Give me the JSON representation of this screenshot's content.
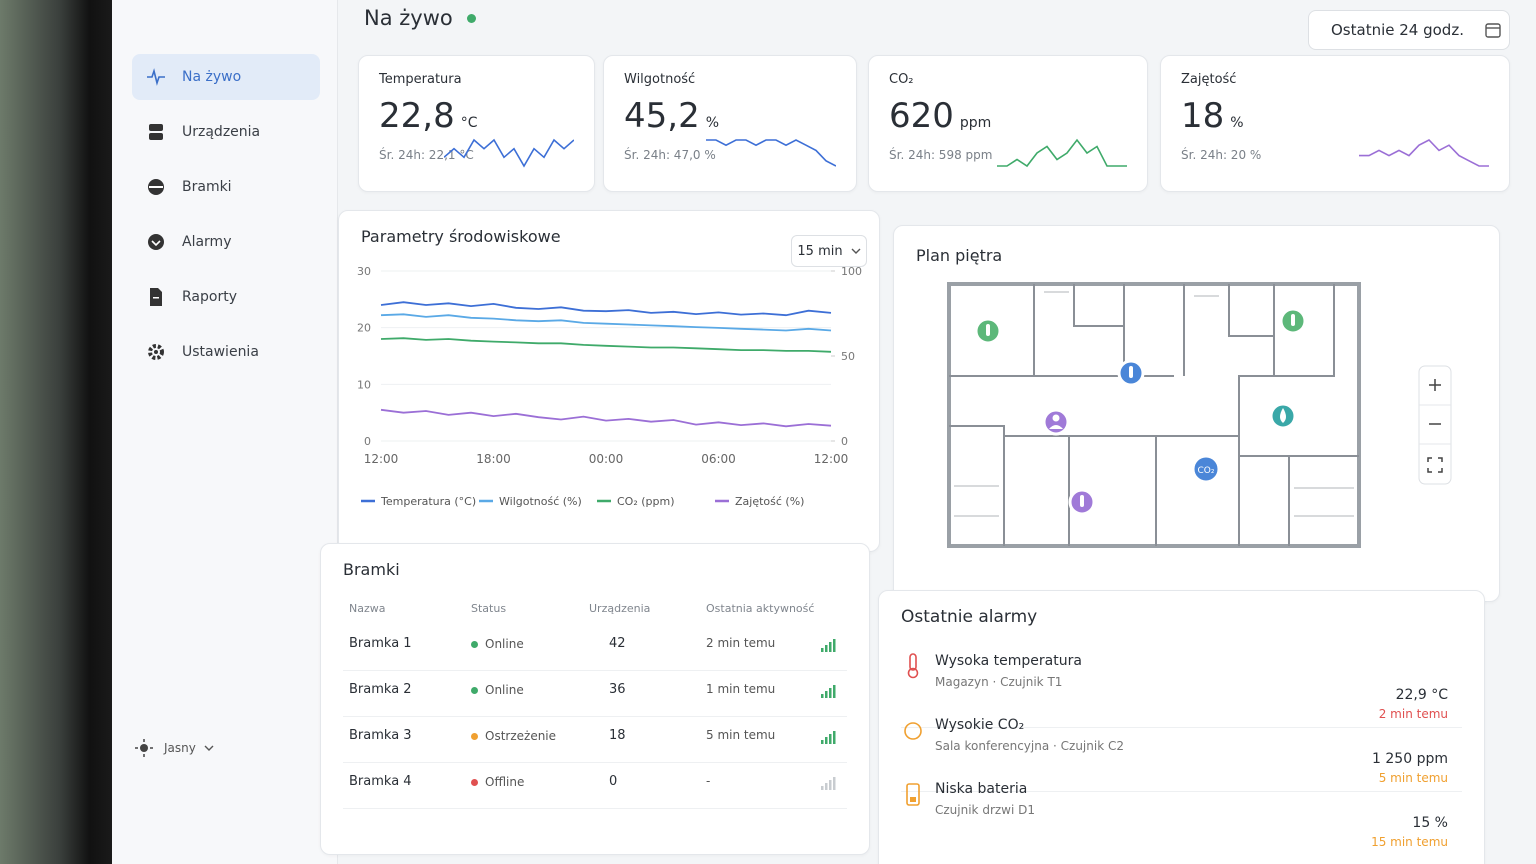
{
  "sidebar": {
    "nav": [
      "Na żywo",
      "Urządzenia",
      "Bramki",
      "Alarmy",
      "Raporty",
      "Ustawienia"
    ],
    "theme": "Jasny"
  },
  "header": {
    "title": "Na żywo",
    "range": "Ostatnie 24 godz."
  },
  "kpis": [
    {
      "label": "Temperatura",
      "value": "22,8",
      "unit": "°C",
      "avg": "Śr. 24h: 22,1 °C",
      "color": "#3d6fd6",
      "spark": [
        3,
        4,
        3,
        5,
        4,
        5,
        3,
        4,
        2,
        4,
        3,
        5,
        4,
        5
      ]
    },
    {
      "label": "Wilgotność",
      "value": "45,2",
      "unit": "%",
      "avg": "Śr. 24h: 47,0 %",
      "color": "#3d6fd6",
      "spark": [
        6,
        6,
        5,
        6,
        6,
        5,
        6,
        6,
        5,
        6,
        5,
        4,
        2,
        1
      ]
    },
    {
      "label": "CO₂",
      "value": "620",
      "unit": "ppm",
      "avg": "Śr. 24h: 598 ppm",
      "color": "#3faa6a",
      "spark": [
        2,
        2,
        3,
        2,
        4,
        5,
        3,
        4,
        6,
        4,
        5,
        2,
        2,
        2
      ]
    },
    {
      "label": "Zajętość",
      "value": "18",
      "unit": "%",
      "avg": "Śr. 24h: 20 %",
      "color": "#9b6fd6",
      "spark": [
        4,
        4,
        5,
        4,
        5,
        4,
        6,
        7,
        5,
        6,
        4,
        3,
        2,
        2
      ]
    }
  ],
  "env_chart": {
    "title": "Parametry środowiskowe",
    "interval": "15 min",
    "ylim": [
      0,
      30
    ],
    "yticks": [
      0,
      10,
      20,
      30
    ],
    "y2lim": [
      0,
      100
    ],
    "y2ticks": [
      0,
      50,
      100
    ],
    "xticks": [
      "12:00",
      "18:00",
      "00:00",
      "06:00",
      "12:00"
    ],
    "series": [
      {
        "name": "Temperatura (°C)",
        "color": "#3d6fd6",
        "values": [
          24,
          24.5,
          24,
          24.3,
          23.8,
          24.2,
          23.5,
          23.3,
          23.6,
          23,
          22.9,
          23.1,
          22.6,
          22.8,
          22.4,
          22.7,
          22.3,
          22.5,
          22.2,
          23,
          22.6
        ]
      },
      {
        "name": "Wilgotność (%)",
        "color": "#5aa9e6",
        "values": [
          74,
          74.5,
          73,
          74,
          72.5,
          72,
          71,
          70.5,
          71,
          69.5,
          69,
          68.5,
          68,
          67.5,
          67,
          66.5,
          66,
          65.5,
          65,
          66,
          65
        ]
      },
      {
        "name": "CO₂ (ppm)",
        "color": "#3faa6a",
        "values": [
          60,
          60.5,
          59.5,
          60,
          59,
          58.5,
          58,
          57.5,
          57.5,
          56.5,
          56,
          55.5,
          55,
          55,
          54.5,
          54,
          53.5,
          53.5,
          53,
          53,
          52.5
        ]
      },
      {
        "name": "Zajętość (%)",
        "color": "#9b6fd6",
        "values": [
          5.5,
          5,
          5.3,
          4.6,
          5,
          4.4,
          4.8,
          4.2,
          3.8,
          4.3,
          3.6,
          3.9,
          3.4,
          3.7,
          2.9,
          3.3,
          2.8,
          3.1,
          2.6,
          3,
          2.7
        ],
        "axis": "y"
      }
    ],
    "series_axes": [
      "y",
      "y2",
      "y2",
      "y"
    ]
  },
  "floor_plan": {
    "title": "Plan piętra",
    "co2_label": "CO₂"
  },
  "gateways": {
    "title": "Bramki",
    "columns": [
      "Nazwa",
      "Status",
      "Urządzenia",
      "Ostatnia aktywność"
    ],
    "rows": [
      {
        "name": "Bramka 1",
        "status": "Online",
        "status_color": "#3faa6a",
        "devices": "42",
        "last": "2 min temu"
      },
      {
        "name": "Bramka 2",
        "status": "Online",
        "status_color": "#3faa6a",
        "devices": "36",
        "last": "1 min temu"
      },
      {
        "name": "Bramka 3",
        "status": "Ostrzeżenie",
        "status_color": "#f0a030",
        "devices": "18",
        "last": "5 min temu"
      },
      {
        "name": "Bramka 4",
        "status": "Offline",
        "status_color": "#e05050",
        "devices": "0",
        "last": "-"
      }
    ]
  },
  "alarms": {
    "title": "Ostatnie alarmy",
    "items": [
      {
        "title": "Wysoka temperatura",
        "location": "Magazyn · Czujnik T1",
        "value": "22,9 °C",
        "time": "2 min temu",
        "color": "#e05050"
      },
      {
        "title": "Wysokie CO₂",
        "location": "Sala konferencyjna · Czujnik C2",
        "value": "1 250 ppm",
        "time": "5 min temu",
        "color": "#f0a030"
      },
      {
        "title": "Niska bateria",
        "location": "Czujnik drzwi D1",
        "value": "15 %",
        "time": "15 min temu",
        "color": "#f0a030"
      }
    ]
  }
}
